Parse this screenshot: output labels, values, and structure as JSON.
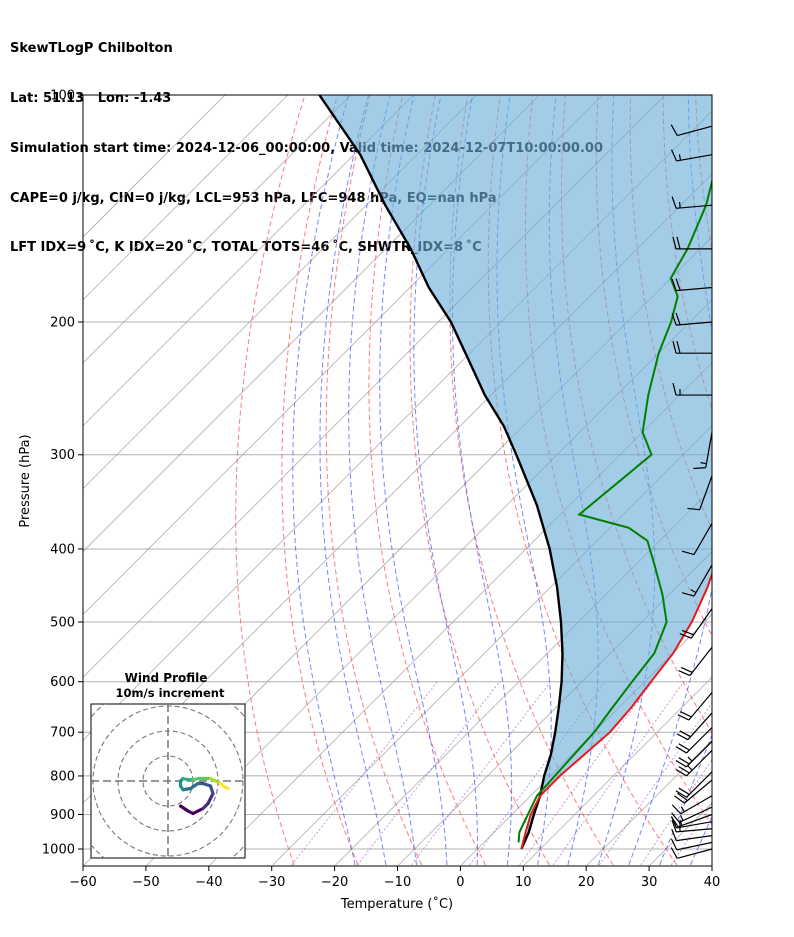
{
  "header": {
    "lines": [
      "SkewTLogP Chilbolton",
      "Lat: 51.13   Lon: -1.43",
      "Simulation start time: 2024-12-06_00:00:00, Valid time: 2024-12-07T10:00:00.00",
      "CAPE=0 j/kg, CIN=0 j/kg, LCL=953 hPa, LFC=948 hPa, EQ=nan hPa",
      "LFT IDX=9 ˚C, K IDX=20 ˚C, TOTAL TOTS=46 ˚C, SHWTR_IDX=8 ˚C"
    ]
  },
  "colors": {
    "temperature": "#e41a1c",
    "dewpoint": "#008000",
    "parcel": "#000000",
    "cape_fill": "#6baed6",
    "dry_adiabat": "#ff4444",
    "moist_adiabat": "#3355ff",
    "isotherm": "#999999",
    "mixing_ratio": "#9944cc"
  },
  "chart_data": [
    {
      "type": "line",
      "xlabel": "Temperature (˚C)",
      "ylabel": "Pressure (hPa)",
      "x_ticks": [
        -60,
        -50,
        -40,
        -30,
        -20,
        -10,
        0,
        10,
        20,
        30,
        40
      ],
      "y_ticks": [
        100,
        200,
        300,
        400,
        500,
        600,
        700,
        800,
        900,
        1000
      ],
      "xlim": [
        -60,
        40
      ],
      "ylim": [
        1050,
        100
      ],
      "y_scale": "log",
      "skew": "skew-T log-P",
      "grid": true,
      "series": [
        {
          "role": "temperature",
          "points": [
            [
              7,
              1000
            ],
            [
              5,
              950
            ],
            [
              3,
              900
            ],
            [
              1.5,
              850
            ],
            [
              1.5,
              800
            ],
            [
              2.5,
              700
            ],
            [
              2,
              650
            ],
            [
              1,
              600
            ],
            [
              0,
              550
            ],
            [
              -2,
              500
            ],
            [
              -5,
              450
            ],
            [
              -9,
              400
            ],
            [
              -11,
              380
            ],
            [
              -11,
              350
            ],
            [
              -12,
              300
            ],
            [
              -14,
              260
            ],
            [
              -16,
              240
            ],
            [
              -19,
              210
            ],
            [
              -21,
              200
            ],
            [
              -25,
              180
            ],
            [
              -31,
              160
            ],
            [
              -40,
              140
            ],
            [
              -50,
              120
            ],
            [
              -55,
              100
            ]
          ]
        },
        {
          "role": "dewpoint",
          "points": [
            [
              5.5,
              980
            ],
            [
              4,
              950
            ],
            [
              1,
              850
            ],
            [
              0,
              700
            ],
            [
              -1,
              650
            ],
            [
              -2,
              600
            ],
            [
              -3,
              550
            ],
            [
              -6,
              500
            ],
            [
              -11,
              460
            ],
            [
              -17,
              420
            ],
            [
              -22,
              390
            ],
            [
              -27,
              375
            ],
            [
              -37,
              360
            ],
            [
              -35,
              300
            ],
            [
              -40,
              280
            ],
            [
              -45,
              250
            ],
            [
              -50,
              220
            ],
            [
              -53,
              200
            ],
            [
              -56,
              185
            ],
            [
              -60,
              175
            ],
            [
              -62,
              160
            ],
            [
              -66,
              140
            ],
            [
              -72,
              120
            ],
            [
              -77,
              100
            ]
          ]
        },
        {
          "role": "parcel",
          "points": [
            [
              7,
              1000
            ],
            [
              5.5,
              950
            ],
            [
              3.5,
              900
            ],
            [
              1.5,
              850
            ],
            [
              -1,
              800
            ],
            [
              -3.3,
              750
            ],
            [
              -6.2,
              700
            ],
            [
              -9.5,
              650
            ],
            [
              -13.2,
              600
            ],
            [
              -17.6,
              550
            ],
            [
              -22.8,
              500
            ],
            [
              -28.9,
              450
            ],
            [
              -36.2,
              400
            ],
            [
              -45.2,
              350
            ],
            [
              -56.5,
              300
            ],
            [
              -63,
              275
            ],
            [
              -71,
              250
            ],
            [
              -79,
              225
            ],
            [
              -88,
              200
            ],
            [
              -97,
              180
            ],
            [
              -106,
              160
            ],
            [
              -117,
              140
            ],
            [
              -129,
              120
            ],
            [
              -145,
              100
            ]
          ]
        }
      ],
      "wind_barbs": [
        {
          "p": 1000,
          "speed_kt": 10,
          "dir": 285
        },
        {
          "p": 980,
          "speed_kt": 10,
          "dir": 282
        },
        {
          "p": 960,
          "speed_kt": 12,
          "dir": 278
        },
        {
          "p": 940,
          "speed_kt": 15,
          "dir": 275
        },
        {
          "p": 920,
          "speed_kt": 15,
          "dir": 280
        },
        {
          "p": 900,
          "speed_kt": 15,
          "dir": 290
        },
        {
          "p": 880,
          "speed_kt": 15,
          "dir": 295
        },
        {
          "p": 850,
          "speed_kt": 15,
          "dir": 300
        },
        {
          "p": 810,
          "speed_kt": 20,
          "dir": 310
        },
        {
          "p": 790,
          "speed_kt": 20,
          "dir": 315
        },
        {
          "p": 740,
          "speed_kt": 25,
          "dir": 315
        },
        {
          "p": 720,
          "speed_kt": 25,
          "dir": 315
        },
        {
          "p": 690,
          "speed_kt": 20,
          "dir": 315
        },
        {
          "p": 660,
          "speed_kt": 20,
          "dir": 318
        },
        {
          "p": 620,
          "speed_kt": 20,
          "dir": 320
        },
        {
          "p": 540,
          "speed_kt": 20,
          "dir": 322
        },
        {
          "p": 480,
          "speed_kt": 20,
          "dir": 325
        },
        {
          "p": 420,
          "speed_kt": 15,
          "dir": 330
        },
        {
          "p": 370,
          "speed_kt": 10,
          "dir": 330
        },
        {
          "p": 320,
          "speed_kt": 10,
          "dir": 340
        },
        {
          "p": 280,
          "speed_kt": 15,
          "dir": 350
        },
        {
          "p": 250,
          "speed_kt": 15,
          "dir": 270
        },
        {
          "p": 220,
          "speed_kt": 20,
          "dir": 270
        },
        {
          "p": 200,
          "speed_kt": 20,
          "dir": 275
        },
        {
          "p": 180,
          "speed_kt": 20,
          "dir": 275
        },
        {
          "p": 160,
          "speed_kt": 20,
          "dir": 270
        },
        {
          "p": 140,
          "speed_kt": 15,
          "dir": 275
        },
        {
          "p": 120,
          "speed_kt": 15,
          "dir": 280
        },
        {
          "p": 110,
          "speed_kt": 10,
          "dir": 285
        }
      ]
    },
    {
      "type": "line",
      "title": "Wind Profile",
      "subtitle": "10m/s increment",
      "hodograph": [
        [
          5,
          -10
        ],
        [
          8,
          -12
        ],
        [
          10,
          -13
        ],
        [
          14,
          -11
        ],
        [
          16,
          -9
        ],
        [
          18,
          -5
        ],
        [
          17,
          -2
        ],
        [
          14,
          -1
        ],
        [
          12,
          -1
        ],
        [
          9,
          -3
        ],
        [
          6,
          -3.5
        ],
        [
          5,
          -2
        ],
        [
          5,
          0
        ],
        [
          6,
          1
        ],
        [
          8,
          0.5
        ],
        [
          10,
          0.5
        ],
        [
          12,
          1
        ],
        [
          14,
          1
        ],
        [
          17,
          1
        ],
        [
          19,
          0
        ],
        [
          21,
          -1
        ],
        [
          22,
          -2
        ],
        [
          24,
          -3
        ]
      ]
    }
  ]
}
